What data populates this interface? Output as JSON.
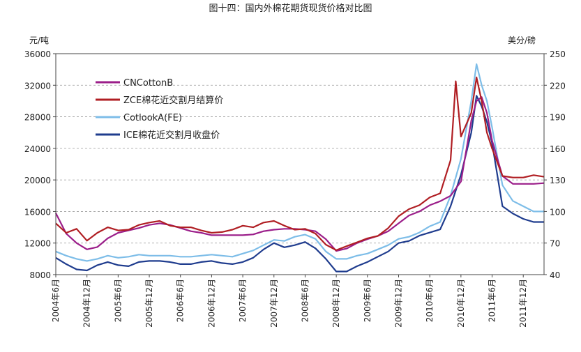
{
  "chart_data": {
    "type": "line",
    "title": "图十四：国内外棉花期货现货价格对比图",
    "y_left_unit": "元/吨",
    "y_right_unit": "美分/磅",
    "y_left_lim": [
      8000,
      36000
    ],
    "y_left_ticks": [
      "36000",
      "32000",
      "28000",
      "24000",
      "20000",
      "16000",
      "12000",
      "8000"
    ],
    "y_right_lim": [
      40,
      250
    ],
    "y_right_ticks": [
      "250",
      "220",
      "190",
      "160",
      "130",
      "100",
      "70",
      "40"
    ],
    "x_ticks": [
      "2004年6月",
      "2004年12月",
      "2005年6月",
      "2005年12月",
      "2006年6月",
      "2006年12月",
      "2007年6月",
      "2007年12月",
      "2008年6月",
      "2008年12月",
      "2009年6月",
      "2009年12月",
      "2010年6月",
      "2010年12月",
      "2011年6月",
      "2011年12月"
    ],
    "x_range": [
      "2004-06",
      "2012-04"
    ],
    "grid": true,
    "legend_placement": "top-left",
    "series": [
      {
        "name": "CNCottonB",
        "axis": "left",
        "color": "#9B1E8A",
        "x": [
          "2004-06",
          "2004-08",
          "2004-10",
          "2004-12",
          "2005-02",
          "2005-04",
          "2005-06",
          "2005-08",
          "2005-10",
          "2005-12",
          "2006-02",
          "2006-04",
          "2006-06",
          "2006-08",
          "2006-10",
          "2006-12",
          "2007-02",
          "2007-04",
          "2007-06",
          "2007-08",
          "2007-10",
          "2007-12",
          "2008-02",
          "2008-04",
          "2008-06",
          "2008-08",
          "2008-10",
          "2008-12",
          "2009-02",
          "2009-04",
          "2009-06",
          "2009-08",
          "2009-10",
          "2009-12",
          "2010-02",
          "2010-04",
          "2010-06",
          "2010-08",
          "2010-10",
          "2010-12",
          "2011-02",
          "2011-03",
          "2011-04",
          "2011-05",
          "2011-06",
          "2011-08",
          "2011-10",
          "2011-12",
          "2012-02",
          "2012-04"
        ],
        "values": [
          15800,
          13200,
          12000,
          11200,
          11500,
          12600,
          13300,
          13600,
          13900,
          14300,
          14500,
          14300,
          13900,
          13500,
          13300,
          13000,
          13000,
          13000,
          13000,
          13100,
          13500,
          13700,
          13800,
          13800,
          13700,
          13500,
          12500,
          11000,
          11300,
          12000,
          12500,
          12900,
          13500,
          14500,
          15500,
          16000,
          16800,
          17300,
          18000,
          19800,
          27500,
          30000,
          30500,
          28500,
          25000,
          20500,
          19500,
          19500,
          19500,
          19600
        ]
      },
      {
        "name": "ZCE棉花近交割月结算价",
        "axis": "left",
        "color": "#B01E23",
        "x": [
          "2004-06",
          "2004-08",
          "2004-10",
          "2004-12",
          "2005-02",
          "2005-04",
          "2005-06",
          "2005-08",
          "2005-10",
          "2005-12",
          "2006-02",
          "2006-04",
          "2006-06",
          "2006-08",
          "2006-10",
          "2006-12",
          "2007-02",
          "2007-04",
          "2007-06",
          "2007-08",
          "2007-10",
          "2007-12",
          "2008-02",
          "2008-04",
          "2008-06",
          "2008-08",
          "2008-10",
          "2008-12",
          "2009-02",
          "2009-04",
          "2009-06",
          "2009-08",
          "2009-10",
          "2009-12",
          "2010-02",
          "2010-04",
          "2010-06",
          "2010-08",
          "2010-10",
          "2010-11",
          "2010-12",
          "2011-02",
          "2011-03",
          "2011-04",
          "2011-05",
          "2011-06",
          "2011-08",
          "2011-10",
          "2011-12",
          "2012-02",
          "2012-04"
        ],
        "values": [
          14500,
          13300,
          13800,
          12300,
          13300,
          14000,
          13600,
          13700,
          14300,
          14600,
          14800,
          14200,
          14000,
          14000,
          13600,
          13300,
          13400,
          13700,
          14200,
          14000,
          14600,
          14800,
          14200,
          13700,
          13800,
          13200,
          11800,
          11100,
          11600,
          12100,
          12600,
          12900,
          13900,
          15400,
          16300,
          16800,
          17800,
          18300,
          22500,
          32500,
          25500,
          28500,
          33000,
          30000,
          26000,
          24000,
          20500,
          20300,
          20300,
          20600,
          20400
        ]
      },
      {
        "name": "CotlookA(FE)",
        "axis": "right",
        "color": "#7DBDE8",
        "x": [
          "2004-06",
          "2004-08",
          "2004-10",
          "2004-12",
          "2005-02",
          "2005-04",
          "2005-06",
          "2005-08",
          "2005-10",
          "2005-12",
          "2006-02",
          "2006-04",
          "2006-06",
          "2006-08",
          "2006-10",
          "2006-12",
          "2007-02",
          "2007-04",
          "2007-06",
          "2007-08",
          "2007-10",
          "2007-12",
          "2008-02",
          "2008-04",
          "2008-06",
          "2008-08",
          "2008-10",
          "2008-12",
          "2009-02",
          "2009-04",
          "2009-06",
          "2009-08",
          "2009-10",
          "2009-12",
          "2010-02",
          "2010-04",
          "2010-06",
          "2010-08",
          "2010-10",
          "2010-12",
          "2011-02",
          "2011-03",
          "2011-04",
          "2011-05",
          "2011-06",
          "2011-08",
          "2011-10",
          "2011-12",
          "2012-02",
          "2012-04"
        ],
        "values": [
          62,
          58,
          55,
          53,
          55,
          58,
          56,
          57,
          59,
          58,
          58,
          58,
          57,
          57,
          58,
          59,
          58,
          57,
          60,
          63,
          68,
          73,
          72,
          76,
          78,
          74,
          62,
          55,
          55,
          58,
          60,
          64,
          68,
          74,
          76,
          80,
          86,
          90,
          115,
          150,
          205,
          240,
          220,
          205,
          180,
          125,
          110,
          105,
          100,
          100
        ]
      },
      {
        "name": "ICE棉花近交割月收盘价",
        "axis": "right",
        "color": "#1F3C8E",
        "x": [
          "2004-06",
          "2004-08",
          "2004-10",
          "2004-12",
          "2005-02",
          "2005-04",
          "2005-06",
          "2005-08",
          "2005-10",
          "2005-12",
          "2006-02",
          "2006-04",
          "2006-06",
          "2006-08",
          "2006-10",
          "2006-12",
          "2007-02",
          "2007-04",
          "2007-06",
          "2007-08",
          "2007-10",
          "2007-12",
          "2008-02",
          "2008-04",
          "2008-06",
          "2008-08",
          "2008-10",
          "2008-12",
          "2009-02",
          "2009-04",
          "2009-06",
          "2009-08",
          "2009-10",
          "2009-12",
          "2010-02",
          "2010-04",
          "2010-06",
          "2010-08",
          "2010-10",
          "2010-12",
          "2011-02",
          "2011-03",
          "2011-04",
          "2011-05",
          "2011-06",
          "2011-08",
          "2011-10",
          "2011-12",
          "2012-02",
          "2012-04"
        ],
        "values": [
          56,
          50,
          45,
          44,
          49,
          52,
          49,
          48,
          52,
          53,
          53,
          52,
          50,
          50,
          52,
          53,
          51,
          50,
          52,
          56,
          64,
          70,
          66,
          68,
          71,
          65,
          55,
          43,
          43,
          48,
          52,
          57,
          62,
          70,
          72,
          77,
          80,
          83,
          105,
          135,
          175,
          210,
          200,
          185,
          165,
          105,
          98,
          93,
          90,
          90
        ]
      }
    ]
  }
}
